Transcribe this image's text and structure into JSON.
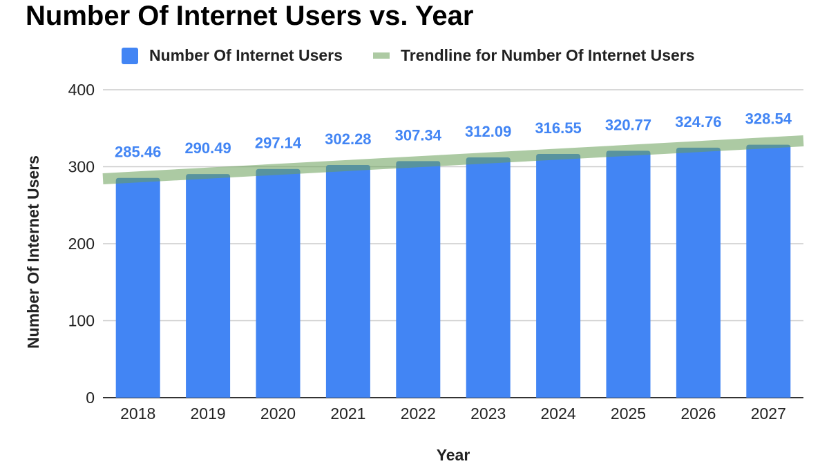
{
  "chart_data": {
    "type": "bar",
    "title": "Number Of Internet Users vs. Year",
    "xlabel": "Year",
    "ylabel": "Number Of Internet Users",
    "ylim": [
      0,
      400
    ],
    "yticks": [
      "0",
      "100",
      "200",
      "300",
      "400"
    ],
    "grid": true,
    "legend_position": "top",
    "categories": [
      "2018",
      "2019",
      "2020",
      "2021",
      "2022",
      "2023",
      "2024",
      "2025",
      "2026",
      "2027"
    ],
    "series": [
      {
        "name": "Number Of Internet Users",
        "color": "#4285f4",
        "values": [
          285.46,
          290.49,
          297.14,
          302.28,
          307.34,
          312.09,
          316.55,
          320.77,
          324.76,
          328.54
        ],
        "labels": [
          "285.46",
          "290.49",
          "297.14",
          "302.28",
          "307.34",
          "312.09",
          "316.55",
          "320.77",
          "324.76",
          "328.54"
        ]
      }
    ],
    "trendline": {
      "name": "Trendline for Number Of Internet Users",
      "color": "#6a9f58",
      "type": "linear",
      "start_value": 284.3,
      "end_value": 333.6
    }
  }
}
